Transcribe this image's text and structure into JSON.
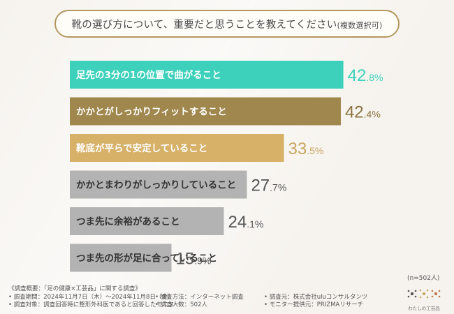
{
  "title": {
    "main": "靴の選び方について、重要だと思うことを教えてください",
    "sub": "(複数選択可)"
  },
  "chart_data": {
    "type": "bar",
    "orientation": "horizontal",
    "unit": "%",
    "categories": [
      "足先の3分の1の位置で曲がること",
      "かかとがしっかりフィットすること",
      "靴底が平らで安定していること",
      "かかとまわりがしっかりしていること",
      "つま先に余裕があること",
      "つま先の形が足に合っていること"
    ],
    "values": [
      42.8,
      42.4,
      33.5,
      27.7,
      24.1,
      15.9
    ],
    "bar_colors": [
      "#3dd1bb",
      "#a0874d",
      "#d7b168",
      "#b3b3b3",
      "#b3b3b3",
      "#b3b3b3"
    ],
    "label_colors": [
      "#3dd1bb",
      "#8a7340",
      "#c9a45e",
      "#555555",
      "#555555",
      "#555555"
    ],
    "sample_label": "(n=502人)"
  },
  "footer": {
    "overview": "《調査概要：「足の健康×工芸品」に関する調査》",
    "period": "• 調査期間：2024年11月7日（木）〜2024年11月8日（金）",
    "method": "• 調査方法：インターネット調査",
    "organizer": "• 調査元：株式会社uluコンサルタンツ",
    "target": "• 調査対象：調査回答時に整形外科医であると回答したモニター",
    "count": "• 調査人数：502人",
    "provider": "• モニター提供元：PRIZMAリサーチ"
  },
  "logo": {
    "text": "わたしの工芸品"
  }
}
